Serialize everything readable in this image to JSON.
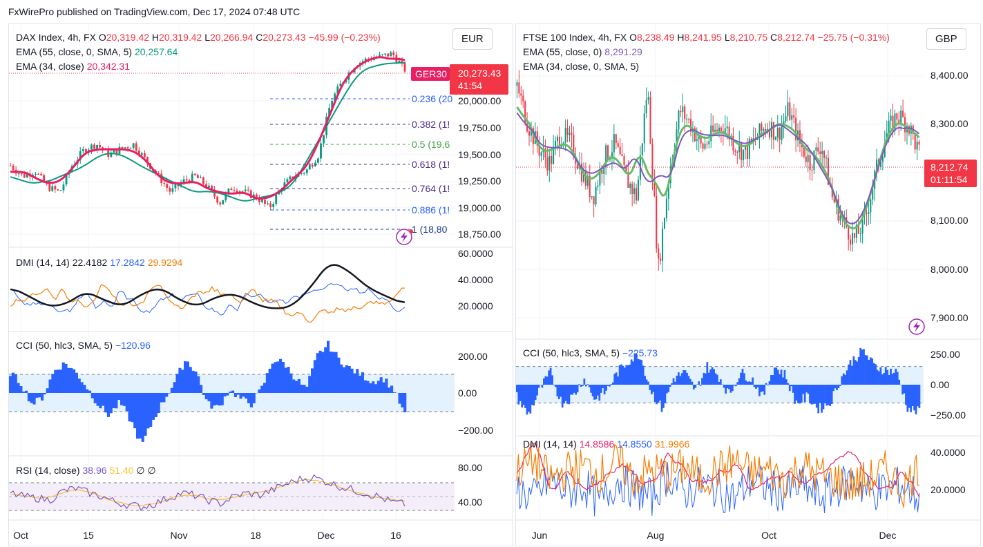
{
  "header": {
    "published": "FxWirePro published on TradingView.com, Dec 17, 2024 07:48 UTC"
  },
  "left": {
    "currency": "EUR",
    "title": {
      "name": "DAX Index, 4h, FX",
      "o_label": "O",
      "o": "20,319.42",
      "h_label": "H",
      "h": "20,319.42",
      "l_label": "L",
      "l": "20,266.94",
      "c_label": "C",
      "c": "20,273.43",
      "chg": "−45.99 (−0.23%)"
    },
    "ema55": {
      "label": "EMA (55, close, 0, SMA, 5)",
      "value": "20,257.64"
    },
    "ema34": {
      "label": "EMA (34, close)",
      "value": "20,342.31"
    },
    "symbol_tag": "GER30",
    "price_tag": "20,273.43",
    "countdown": "41:54",
    "price_axis": [
      "20,000.00",
      "19,750.00",
      "19,500.00",
      "19,250.00",
      "19,000.00",
      "18,750.00"
    ],
    "fib": [
      {
        "label": "0.236 (20",
        "color": "#2962ff"
      },
      {
        "label": "0.382 (1!",
        "color": "#4a2a8a"
      },
      {
        "label": "0.5 (19,6",
        "color": "#43a047"
      },
      {
        "label": "0.618 (1!",
        "color": "#4a2a8a"
      },
      {
        "label": "0.764 (1!",
        "color": "#4a2a8a"
      },
      {
        "label": "0.886 (1!",
        "color": "#2962ff"
      },
      {
        "label": "1 (18,80",
        "color": "#1a3a8a"
      }
    ],
    "dmi": {
      "label": "DMI (14, 14)",
      "adx": "22.4182",
      "plus": "17.2842",
      "minus": "29.9294",
      "axis": [
        "60.0000",
        "40.0000",
        "20.0000"
      ]
    },
    "cci": {
      "label": "CCI (50, hlc3, SMA, 5)",
      "value": "−120.96",
      "axis": [
        "200.00",
        "0.00",
        "−200.00"
      ]
    },
    "rsi": {
      "label": "RSI (14, close)",
      "value": "38.96",
      "ma": "51.40",
      "extra1": "∅",
      "extra2": "∅",
      "axis": [
        "80.00",
        "40.00"
      ]
    },
    "time_axis": [
      "Oct",
      "15",
      "Nov",
      "18",
      "Dec",
      "16"
    ]
  },
  "right": {
    "currency": "GBP",
    "title": {
      "name": "FTSE 100 Index, 4h, FX",
      "o_label": "O",
      "o": "8,238.49",
      "h_label": "H",
      "h": "8,241.95",
      "l_label": "L",
      "l": "8,210.75",
      "c_label": "C",
      "c": "8,212.74",
      "chg": "−25.75 (−0.31%)"
    },
    "ema55": {
      "label": "EMA (55, close, 0)",
      "value": "8,291.29"
    },
    "ema34": {
      "label": "EMA (34, close, 0, SMA, 5)",
      "value": ""
    },
    "price_tag": "8,212.74",
    "countdown": "01:11:54",
    "price_axis": [
      "8,400.00",
      "8,300.00",
      "8,100.00",
      "8,000.00",
      "7,900.00"
    ],
    "cci": {
      "label": "CCI (50, hlc3, SMA, 5)",
      "value": "−225.73",
      "axis": [
        "250.00",
        "0.00",
        "−250.00"
      ]
    },
    "dmi": {
      "label": "DMI (14, 14)",
      "adx": "14.8586",
      "plus": "14.8550",
      "minus": "31.9966",
      "axis": [
        "40.0000",
        "20.0000"
      ]
    },
    "time_axis": [
      "Jun",
      "Aug",
      "Oct",
      "Dec"
    ]
  },
  "colors": {
    "up": "#089981",
    "down": "#f23645",
    "ema_red": "#e91e63",
    "ema_teal": "#089981",
    "ema_purple": "#7e57c2",
    "ema_green": "#66bb6a",
    "cci": "#2962ff",
    "dmi_plus": "#2962ff",
    "dmi_minus": "#f57c00",
    "adx_left": "#131722",
    "adx_right": "#e91e63",
    "rsi": "#7e57c2",
    "rsi_ma": "#fbc02d"
  },
  "chart_data": [
    {
      "type": "line",
      "title": "DAX Index, 4h, FX",
      "series": [
        {
          "name": "EMA (34, close)",
          "values": [
            19350,
            19280,
            19450,
            19560,
            19420,
            19200,
            19130,
            19200,
            19450,
            20000,
            20280,
            20342
          ]
        },
        {
          "name": "EMA (55, close, 0, SMA, 5)",
          "values": [
            19100,
            19200,
            19420,
            19520,
            19440,
            19250,
            19150,
            19180,
            19300,
            19800,
            20150,
            20258
          ]
        }
      ],
      "x": [
        "Oct",
        "",
        "15",
        "",
        "Nov",
        "",
        "18",
        "",
        "Dec",
        "",
        "16",
        ""
      ],
      "ylim": [
        18700,
        20500
      ]
    },
    {
      "type": "line",
      "title": "FTSE 100 Index, 4h, FX",
      "series": [
        {
          "name": "EMA (55, close, 0)",
          "values": [
            8360,
            8280,
            8230,
            8240,
            8180,
            8220,
            8330,
            8260,
            8270,
            8280,
            8250,
            8160,
            8080,
            8200,
            8300,
            8291
          ]
        },
        {
          "name": "EMA (34, close, 0, SMA, 5)",
          "values": [
            8370,
            8270,
            8220,
            8250,
            8170,
            8230,
            8350,
            8250,
            8280,
            8290,
            8240,
            8140,
            8070,
            8230,
            8310,
            8280
          ]
        }
      ],
      "x": [
        "Jun",
        "",
        "",
        "",
        "Aug",
        "",
        "",
        "",
        "Oct",
        "",
        "",
        "",
        "Dec",
        "",
        "",
        ""
      ],
      "ylim": [
        7880,
        8460
      ]
    }
  ]
}
